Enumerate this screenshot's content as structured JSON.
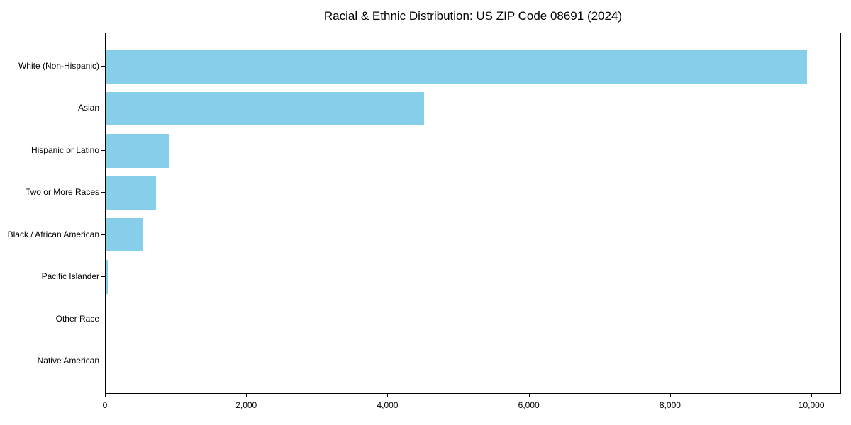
{
  "page": {
    "background_color": "#ffffff",
    "text_color": "#000000"
  },
  "chart_data": {
    "type": "bar",
    "orientation": "horizontal",
    "title": "Racial & Ethnic Distribution: US ZIP Code 08691 (2024)",
    "categories": [
      "White (Non-Hispanic)",
      "Asian",
      "Hispanic or Latino",
      "Two or More Races",
      "Black / African American",
      "Pacific Islander",
      "Other Race",
      "Native American"
    ],
    "values": [
      9925,
      4505,
      900,
      710,
      520,
      35,
      10,
      5
    ],
    "xlabel": "",
    "ylabel": "",
    "xlim": [
      0,
      10420
    ],
    "xticks": [
      0,
      2000,
      4000,
      6000,
      8000,
      10000
    ],
    "xtick_labels": [
      "0",
      "2,000",
      "4,000",
      "6,000",
      "8,000",
      "10,000"
    ],
    "bar_color": "#87CEEB",
    "frame_color": "#000000",
    "grid": false,
    "legend": null,
    "bar_width_frac": 0.8
  }
}
